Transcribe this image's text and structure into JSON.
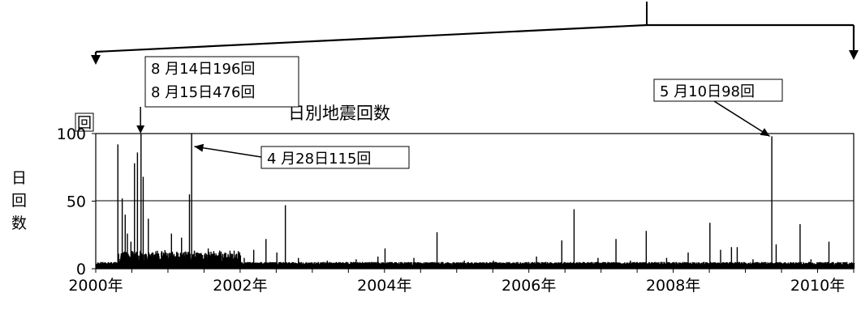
{
  "chart_data": {
    "type": "bar",
    "title": "日別地震回数",
    "ylabel": "日回数",
    "yunit": "回",
    "xlim": [
      2000.0,
      2010.5
    ],
    "ylim": [
      0,
      100
    ],
    "grid": "horizontal",
    "color": "#000000",
    "yticks": [
      0,
      50,
      100
    ],
    "xticks": [
      {
        "value": 2000,
        "label": "2000年"
      },
      {
        "value": 2002,
        "label": "2002年"
      },
      {
        "value": 2004,
        "label": "2004年"
      },
      {
        "value": 2006,
        "label": "2006年"
      },
      {
        "value": 2008,
        "label": "2008年"
      },
      {
        "value": 2010,
        "label": "2010年"
      }
    ],
    "baseline": 2,
    "peaks": [
      {
        "x": 2000.02,
        "y": 3
      },
      {
        "x": 2000.1,
        "y": 3
      },
      {
        "x": 2000.18,
        "y": 3
      },
      {
        "x": 2000.3,
        "y": 92
      },
      {
        "x": 2000.36,
        "y": 52
      },
      {
        "x": 2000.4,
        "y": 40
      },
      {
        "x": 2000.43,
        "y": 26
      },
      {
        "x": 2000.48,
        "y": 20
      },
      {
        "x": 2000.53,
        "y": 78
      },
      {
        "x": 2000.57,
        "y": 86
      },
      {
        "x": 2000.62,
        "y": 100
      },
      {
        "x": 2000.65,
        "y": 68
      },
      {
        "x": 2000.72,
        "y": 37
      },
      {
        "x": 2000.8,
        "y": 10
      },
      {
        "x": 2000.9,
        "y": 12
      },
      {
        "x": 2001.04,
        "y": 26
      },
      {
        "x": 2001.18,
        "y": 23
      },
      {
        "x": 2001.29,
        "y": 55
      },
      {
        "x": 2001.32,
        "y": 100
      },
      {
        "x": 2001.4,
        "y": 12
      },
      {
        "x": 2001.55,
        "y": 15
      },
      {
        "x": 2001.7,
        "y": 12
      },
      {
        "x": 2001.85,
        "y": 10
      },
      {
        "x": 2002.05,
        "y": 8
      },
      {
        "x": 2002.18,
        "y": 14
      },
      {
        "x": 2002.35,
        "y": 22
      },
      {
        "x": 2002.5,
        "y": 12
      },
      {
        "x": 2002.62,
        "y": 47
      },
      {
        "x": 2002.8,
        "y": 8
      },
      {
        "x": 2003.2,
        "y": 6
      },
      {
        "x": 2003.6,
        "y": 7
      },
      {
        "x": 2003.9,
        "y": 9
      },
      {
        "x": 2004.0,
        "y": 15
      },
      {
        "x": 2004.4,
        "y": 8
      },
      {
        "x": 2004.72,
        "y": 27
      },
      {
        "x": 2005.1,
        "y": 6
      },
      {
        "x": 2005.5,
        "y": 6
      },
      {
        "x": 2006.1,
        "y": 9
      },
      {
        "x": 2006.45,
        "y": 21
      },
      {
        "x": 2006.62,
        "y": 44
      },
      {
        "x": 2006.95,
        "y": 8
      },
      {
        "x": 2007.2,
        "y": 22
      },
      {
        "x": 2007.4,
        "y": 6
      },
      {
        "x": 2007.62,
        "y": 28
      },
      {
        "x": 2007.9,
        "y": 8
      },
      {
        "x": 2008.2,
        "y": 12
      },
      {
        "x": 2008.5,
        "y": 34
      },
      {
        "x": 2008.65,
        "y": 14
      },
      {
        "x": 2008.8,
        "y": 16
      },
      {
        "x": 2008.88,
        "y": 16
      },
      {
        "x": 2009.1,
        "y": 7
      },
      {
        "x": 2009.36,
        "y": 98
      },
      {
        "x": 2009.42,
        "y": 18
      },
      {
        "x": 2009.75,
        "y": 33
      },
      {
        "x": 2009.9,
        "y": 7
      },
      {
        "x": 2010.15,
        "y": 20
      },
      {
        "x": 2010.4,
        "y": 5
      }
    ],
    "annotations": [
      {
        "lines": [
          "8 月14日196回",
          "8 月15日476回"
        ],
        "x": 2000.62,
        "y": 100
      },
      {
        "lines": [
          "4 月28日115回"
        ],
        "x": 2001.32,
        "y": 98
      },
      {
        "lines": [
          "5 月10日98回"
        ],
        "x": 2009.36,
        "y": 98
      }
    ],
    "range_marker": {
      "from": 2000.0,
      "to": 2010.5
    }
  }
}
